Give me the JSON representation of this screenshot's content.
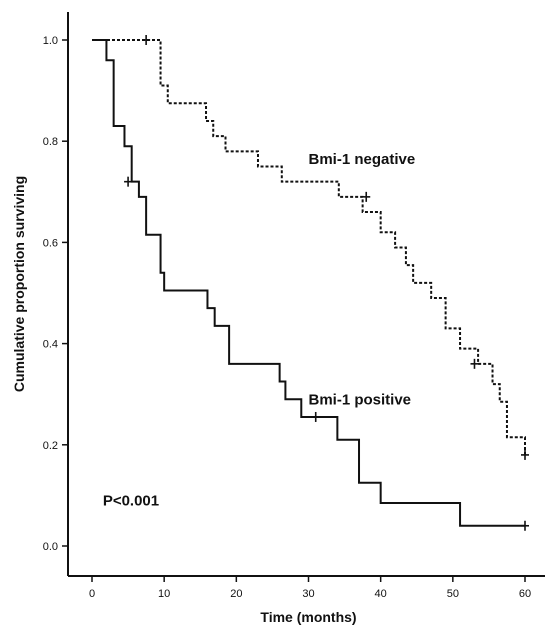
{
  "chart_data": {
    "type": "line",
    "title": "",
    "xlabel": "Time (months)",
    "ylabel": "Cumulative proportion surviving",
    "xlim": [
      0,
      60
    ],
    "ylim": [
      0,
      1.0
    ],
    "x_ticks": [
      0,
      10,
      20,
      30,
      40,
      50,
      60
    ],
    "y_ticks": [
      0.0,
      0.2,
      0.4,
      0.6,
      0.8,
      1.0
    ],
    "x_tick_labels": [
      "0",
      "10",
      "20",
      "30",
      "40",
      "50",
      "60"
    ],
    "y_tick_labels": [
      "0.0",
      "0.2",
      "0.4",
      "0.6",
      "0.8",
      "1.0"
    ],
    "grid": false,
    "step": true,
    "series": [
      {
        "name": "Bmi-1 negative",
        "line_style": "dotted",
        "color": "#111111",
        "x": [
          0,
          9.5,
          10.5,
          15.8,
          16.8,
          18.5,
          23.0,
          26.3,
          34.2,
          37.5,
          40.0,
          42.0,
          43.5,
          44.5,
          47.0,
          49.0,
          51.0,
          53.5,
          55.5,
          56.5,
          57.5,
          60.0
        ],
        "y": [
          1.0,
          0.91,
          0.875,
          0.84,
          0.81,
          0.78,
          0.75,
          0.72,
          0.69,
          0.66,
          0.62,
          0.59,
          0.555,
          0.52,
          0.49,
          0.43,
          0.39,
          0.36,
          0.32,
          0.285,
          0.215,
          0.18
        ],
        "censored": [
          {
            "x": 7.5,
            "y": 1.0
          },
          {
            "x": 38.0,
            "y": 0.69
          },
          {
            "x": 53.0,
            "y": 0.36
          },
          {
            "x": 60.0,
            "y": 0.18
          }
        ]
      },
      {
        "name": "Bmi-1 positive",
        "line_style": "solid",
        "color": "#111111",
        "x": [
          0,
          2.0,
          3.0,
          4.5,
          5.5,
          6.5,
          7.5,
          9.5,
          10.0,
          16.0,
          17.0,
          19.0,
          26.0,
          26.8,
          27.5,
          29.0,
          34.0,
          37.0,
          40.0,
          51.0,
          60.0
        ],
        "y": [
          1.0,
          0.96,
          0.83,
          0.79,
          0.72,
          0.69,
          0.615,
          0.54,
          0.505,
          0.47,
          0.435,
          0.36,
          0.325,
          0.29,
          0.29,
          0.255,
          0.21,
          0.125,
          0.085,
          0.04,
          0.04
        ],
        "censored": [
          {
            "x": 5.0,
            "y": 0.72
          },
          {
            "x": 31.0,
            "y": 0.255
          },
          {
            "x": 60.0,
            "y": 0.04
          }
        ]
      }
    ],
    "annotations": [
      {
        "text": "Bmi-1 negative",
        "x": 30.0,
        "y": 0.755
      },
      {
        "text": "Bmi-1 positive",
        "x": 30.0,
        "y": 0.28
      },
      {
        "text": "P<0.001",
        "x": 1.5,
        "y": 0.08
      }
    ]
  }
}
